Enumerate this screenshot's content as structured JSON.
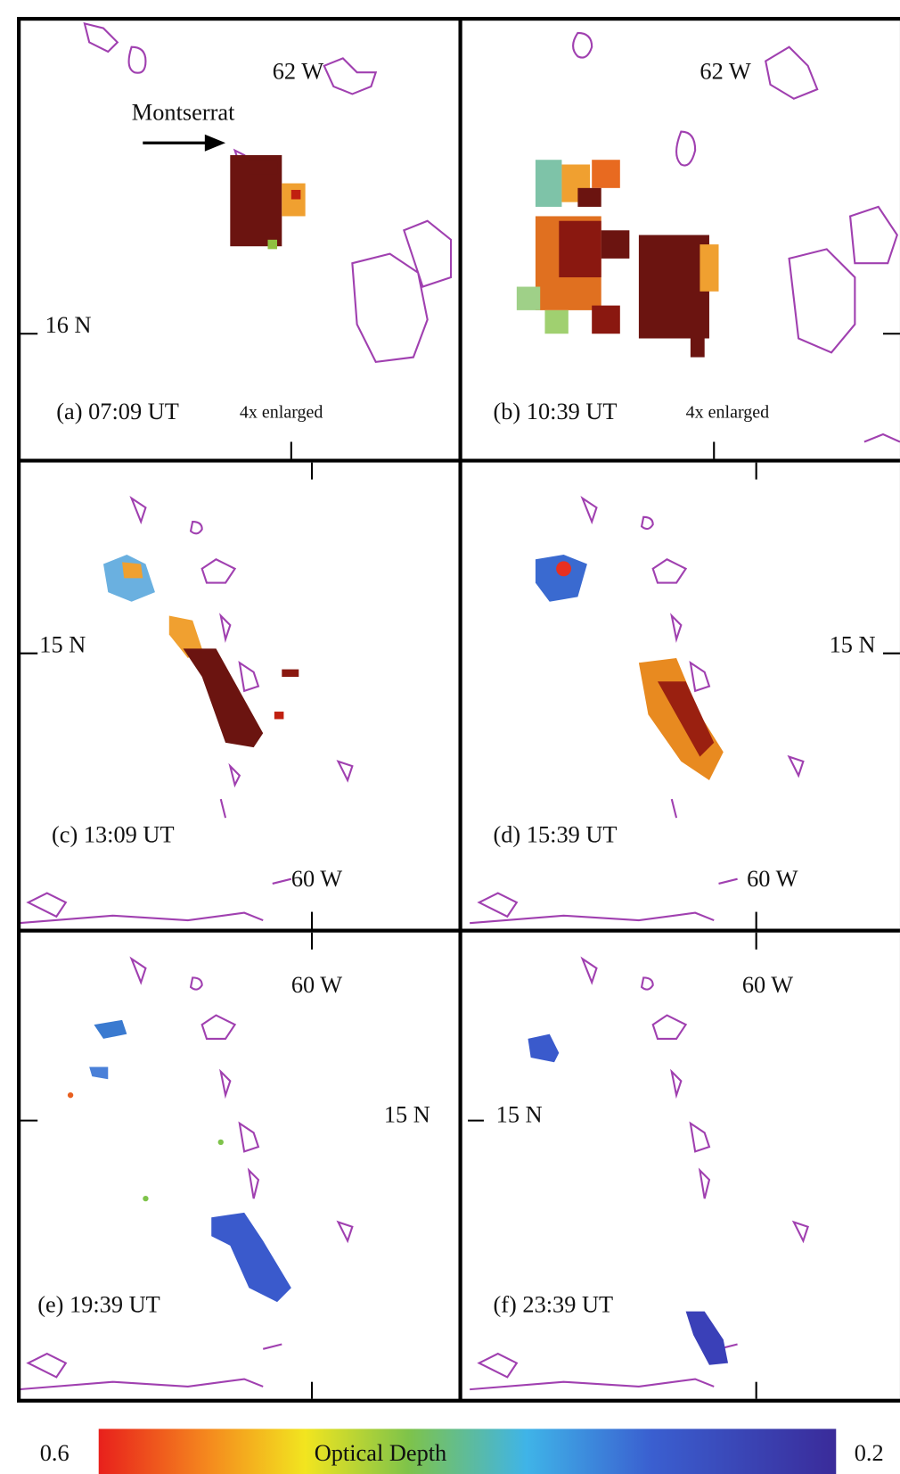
{
  "panels": [
    {
      "caption": "(a) 07:09 UT",
      "note": "4x enlarged",
      "lon": "62 W",
      "lat": "16 N",
      "place": "Montserrat"
    },
    {
      "caption": "(b) 10:39 UT",
      "note": "4x enlarged",
      "lon": "62 W"
    },
    {
      "caption": "(c) 13:09 UT",
      "lon": "60 W",
      "lat": "15 N"
    },
    {
      "caption": "(d) 15:39 UT",
      "lon": "60 W",
      "lat": "15 N"
    },
    {
      "caption": "(e) 19:39 UT",
      "lon": "60 W",
      "lat": "15 N"
    },
    {
      "caption": "(f) 23:39 UT",
      "lon": "60 W",
      "lat": "15 N"
    }
  ],
  "colorbar": {
    "min": 0.6,
    "title": "Optical Depth",
    "max": 0.2
  }
}
